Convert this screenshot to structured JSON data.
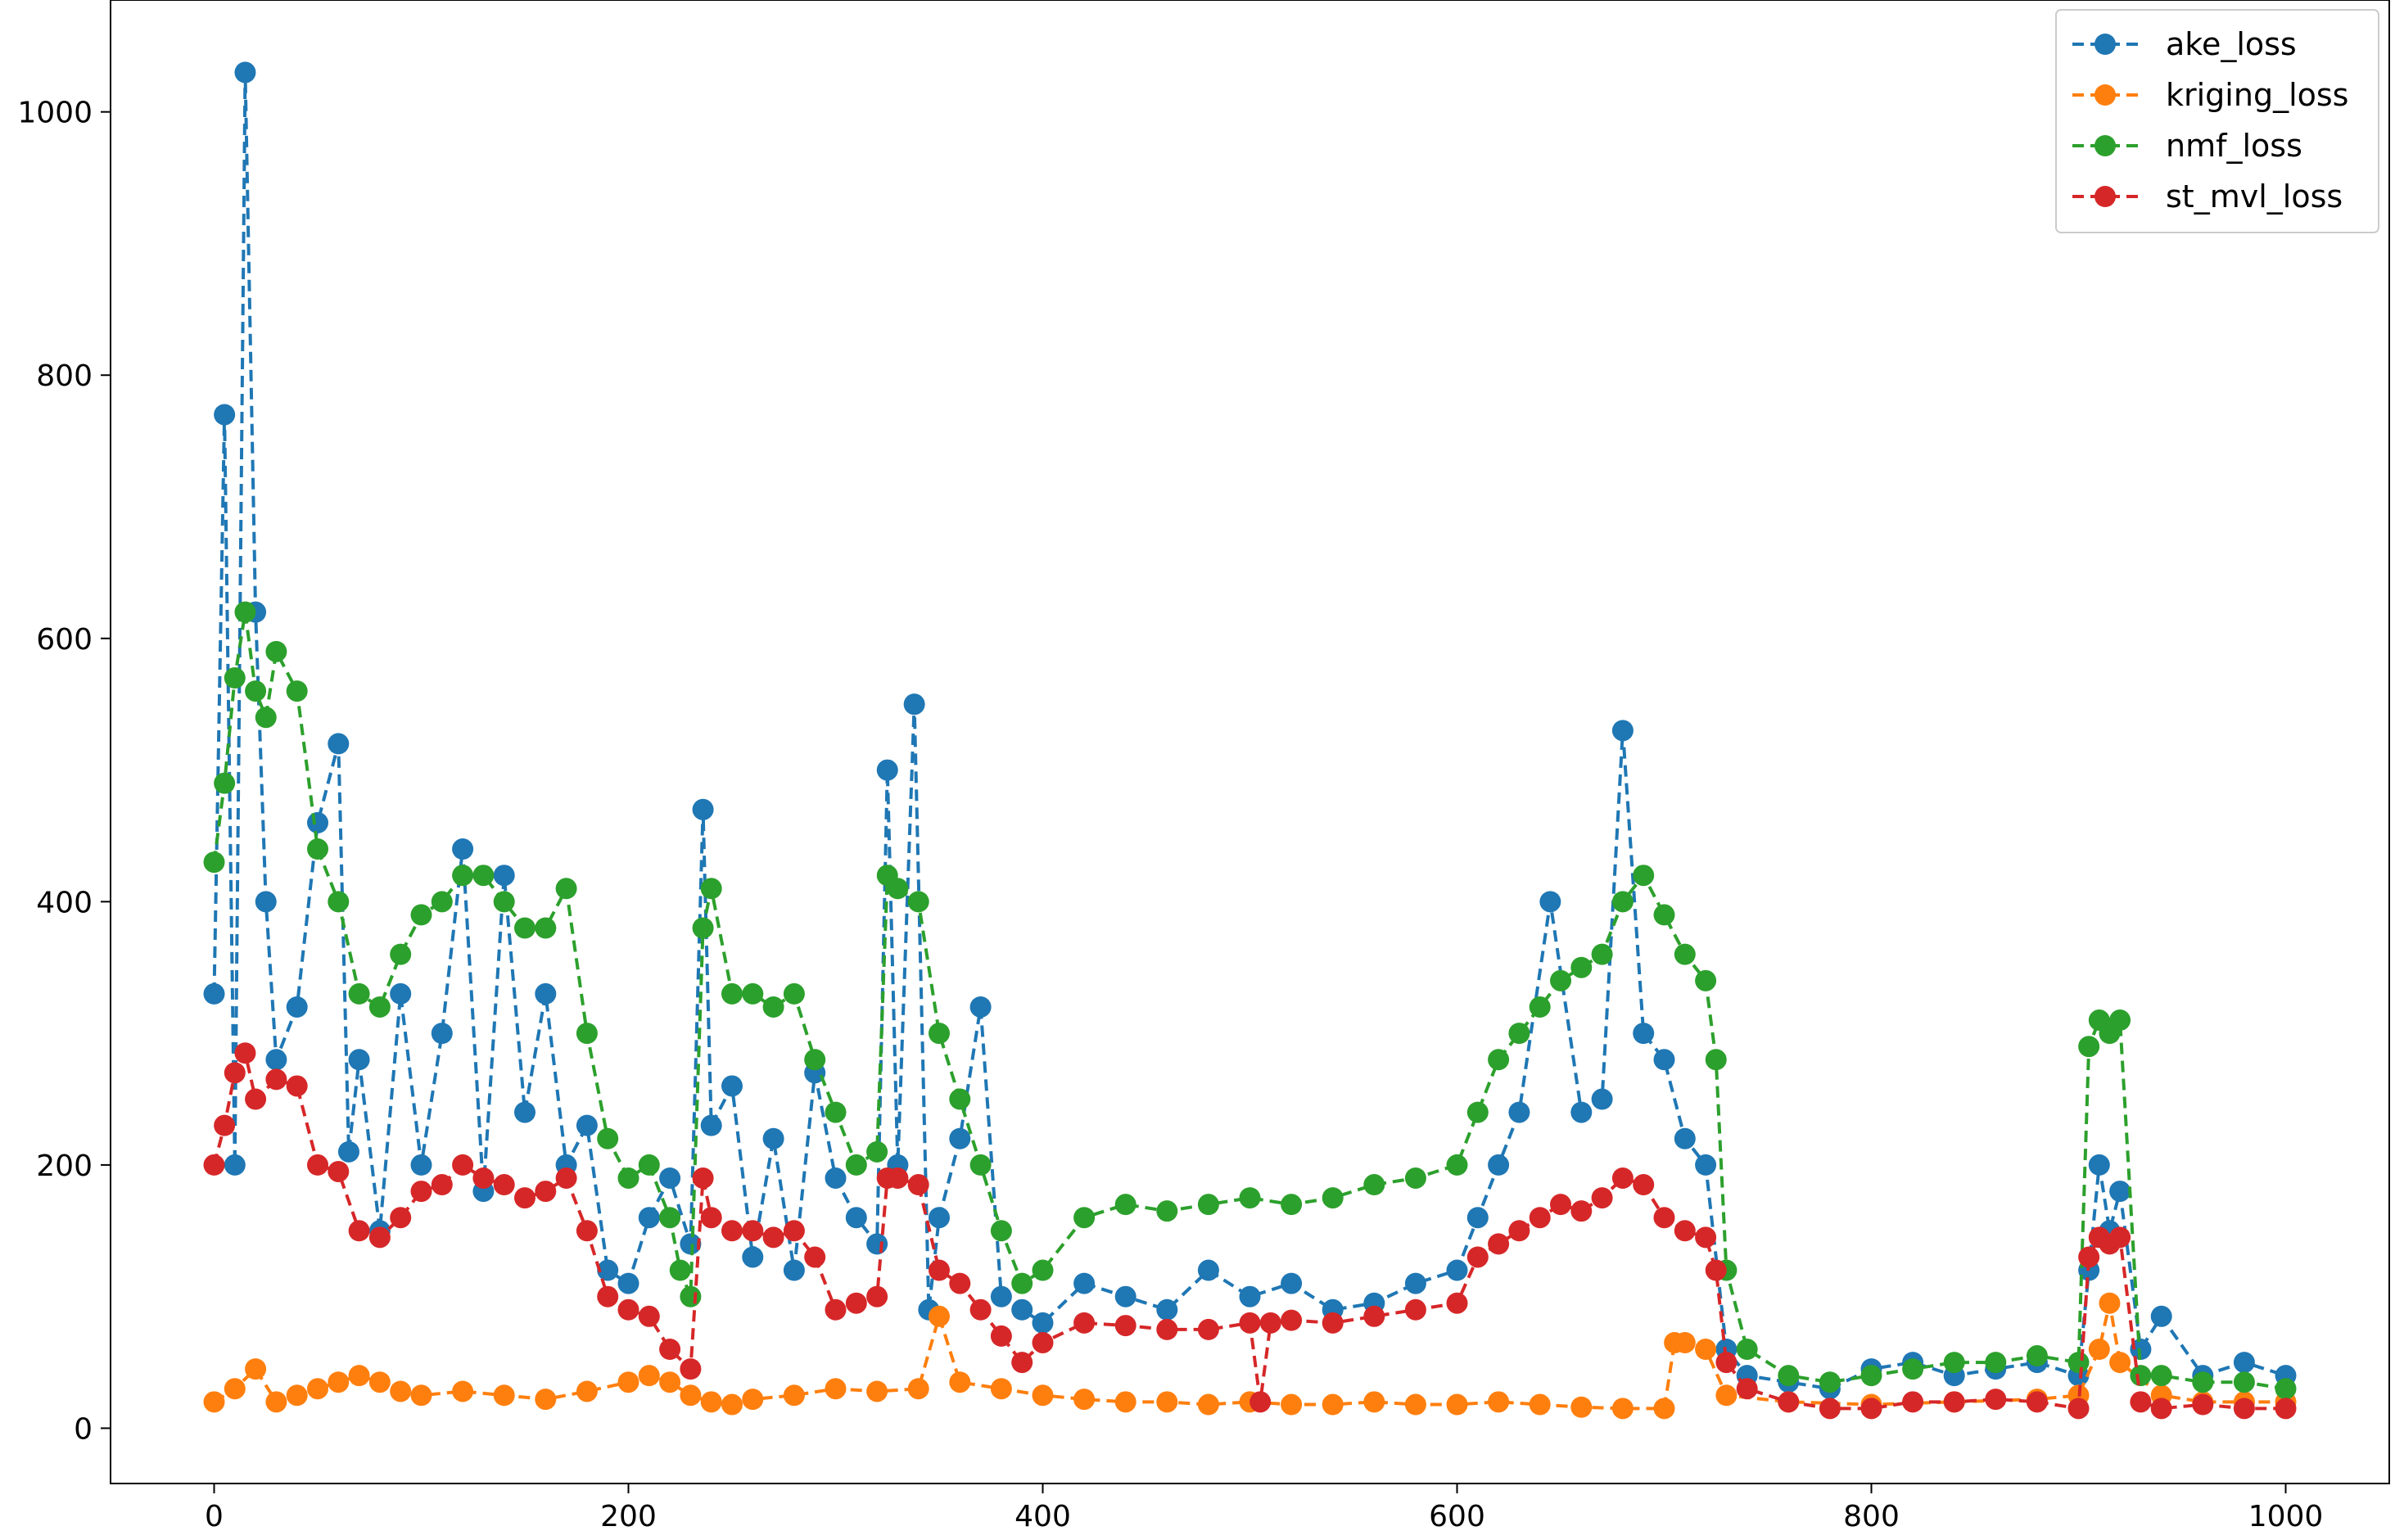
{
  "chart_data": {
    "type": "line",
    "title": "",
    "xlabel": "",
    "ylabel": "",
    "xlim": [
      -50,
      1050
    ],
    "ylim": [
      -42,
      1085
    ],
    "x_ticks": [
      0,
      200,
      400,
      600,
      800,
      1000
    ],
    "y_ticks": [
      0,
      200,
      400,
      600,
      800,
      1000
    ],
    "grid": false,
    "legend_position": "top-right",
    "marker": "circle",
    "line_style": "dashed",
    "series": [
      {
        "name": "ake_loss",
        "color": "#1f77b4",
        "x": [
          0,
          5,
          10,
          15,
          20,
          25,
          30,
          40,
          50,
          60,
          65,
          70,
          80,
          90,
          100,
          110,
          120,
          130,
          140,
          150,
          160,
          170,
          180,
          190,
          200,
          210,
          220,
          230,
          236,
          240,
          250,
          260,
          270,
          280,
          290,
          300,
          310,
          320,
          325,
          330,
          338,
          345,
          350,
          360,
          370,
          380,
          390,
          400,
          420,
          440,
          460,
          480,
          500,
          520,
          540,
          560,
          580,
          600,
          610,
          620,
          630,
          645,
          660,
          670,
          680,
          690,
          700,
          710,
          720,
          730,
          740,
          760,
          780,
          800,
          820,
          840,
          860,
          880,
          900,
          905,
          910,
          915,
          920,
          930,
          940,
          960,
          980,
          1000
        ],
        "values": [
          330,
          770,
          200,
          1030,
          620,
          400,
          280,
          320,
          460,
          520,
          210,
          280,
          150,
          330,
          200,
          300,
          440,
          180,
          420,
          240,
          330,
          200,
          230,
          120,
          110,
          160,
          190,
          140,
          470,
          230,
          260,
          130,
          220,
          120,
          270,
          190,
          160,
          140,
          500,
          200,
          550,
          90,
          160,
          220,
          320,
          100,
          90,
          80,
          110,
          100,
          90,
          120,
          100,
          110,
          90,
          95,
          110,
          120,
          160,
          200,
          240,
          400,
          240,
          250,
          530,
          300,
          280,
          220,
          200,
          60,
          40,
          35,
          30,
          45,
          50,
          40,
          45,
          50,
          40,
          120,
          200,
          150,
          180,
          60,
          85,
          40,
          50,
          40
        ]
      },
      {
        "name": "kriging_loss",
        "color": "#ff7f0e",
        "x": [
          0,
          10,
          20,
          30,
          40,
          50,
          60,
          70,
          80,
          90,
          100,
          120,
          140,
          160,
          180,
          200,
          210,
          220,
          230,
          240,
          250,
          260,
          280,
          300,
          320,
          340,
          350,
          360,
          380,
          400,
          420,
          440,
          460,
          480,
          500,
          520,
          540,
          560,
          580,
          600,
          620,
          640,
          660,
          680,
          700,
          705,
          710,
          720,
          730,
          760,
          800,
          840,
          880,
          900,
          910,
          915,
          920,
          940,
          960,
          980,
          1000
        ],
        "values": [
          20,
          30,
          45,
          20,
          25,
          30,
          35,
          40,
          35,
          28,
          25,
          28,
          25,
          22,
          28,
          35,
          40,
          35,
          25,
          20,
          18,
          22,
          25,
          30,
          28,
          30,
          85,
          35,
          30,
          25,
          22,
          20,
          20,
          18,
          20,
          18,
          18,
          20,
          18,
          18,
          20,
          18,
          16,
          15,
          15,
          65,
          65,
          60,
          25,
          20,
          18,
          20,
          22,
          25,
          60,
          95,
          50,
          25,
          20,
          20,
          20
        ]
      },
      {
        "name": "nmf_loss",
        "color": "#2ca02c",
        "x": [
          0,
          5,
          10,
          15,
          20,
          25,
          30,
          40,
          50,
          60,
          70,
          80,
          90,
          100,
          110,
          120,
          130,
          140,
          150,
          160,
          170,
          180,
          190,
          200,
          210,
          220,
          225,
          230,
          236,
          240,
          250,
          260,
          270,
          280,
          290,
          300,
          310,
          320,
          325,
          330,
          340,
          350,
          360,
          370,
          380,
          390,
          400,
          420,
          440,
          460,
          480,
          500,
          520,
          540,
          560,
          580,
          600,
          610,
          620,
          630,
          640,
          650,
          660,
          670,
          680,
          690,
          700,
          710,
          720,
          725,
          730,
          740,
          760,
          780,
          800,
          820,
          840,
          860,
          880,
          900,
          905,
          910,
          915,
          920,
          930,
          940,
          960,
          980,
          1000
        ],
        "values": [
          430,
          490,
          570,
          620,
          560,
          540,
          590,
          560,
          440,
          400,
          330,
          320,
          360,
          390,
          400,
          420,
          420,
          400,
          380,
          380,
          410,
          300,
          220,
          190,
          200,
          160,
          120,
          100,
          380,
          410,
          330,
          330,
          320,
          330,
          280,
          240,
          200,
          210,
          420,
          410,
          400,
          300,
          250,
          200,
          150,
          110,
          120,
          160,
          170,
          165,
          170,
          175,
          170,
          175,
          185,
          190,
          200,
          240,
          280,
          300,
          320,
          340,
          350,
          360,
          400,
          420,
          390,
          360,
          340,
          280,
          120,
          60,
          40,
          35,
          40,
          45,
          50,
          50,
          55,
          50,
          290,
          310,
          300,
          310,
          40,
          40,
          35,
          35,
          30
        ]
      },
      {
        "name": "st_mvl_loss",
        "color": "#d62728",
        "x": [
          0,
          5,
          10,
          15,
          20,
          30,
          40,
          50,
          60,
          70,
          80,
          90,
          100,
          110,
          120,
          130,
          140,
          150,
          160,
          170,
          180,
          190,
          200,
          210,
          220,
          230,
          236,
          240,
          250,
          260,
          270,
          280,
          290,
          300,
          310,
          320,
          325,
          330,
          340,
          350,
          360,
          370,
          380,
          390,
          400,
          420,
          440,
          460,
          480,
          500,
          505,
          510,
          520,
          540,
          560,
          580,
          600,
          610,
          620,
          630,
          640,
          650,
          660,
          670,
          680,
          690,
          700,
          710,
          720,
          725,
          730,
          740,
          760,
          780,
          800,
          820,
          840,
          860,
          880,
          900,
          905,
          910,
          915,
          920,
          930,
          940,
          960,
          980,
          1000
        ],
        "values": [
          200,
          230,
          270,
          285,
          250,
          265,
          260,
          200,
          195,
          150,
          145,
          160,
          180,
          185,
          200,
          190,
          185,
          175,
          180,
          190,
          150,
          100,
          90,
          85,
          60,
          45,
          190,
          160,
          150,
          150,
          145,
          150,
          130,
          90,
          95,
          100,
          190,
          190,
          185,
          120,
          110,
          90,
          70,
          50,
          65,
          80,
          78,
          75,
          75,
          80,
          20,
          80,
          82,
          80,
          85,
          90,
          95,
          130,
          140,
          150,
          160,
          170,
          165,
          175,
          190,
          185,
          160,
          150,
          145,
          120,
          50,
          30,
          20,
          15,
          15,
          20,
          20,
          22,
          20,
          15,
          130,
          145,
          140,
          145,
          20,
          15,
          18,
          15,
          15
        ]
      }
    ]
  }
}
